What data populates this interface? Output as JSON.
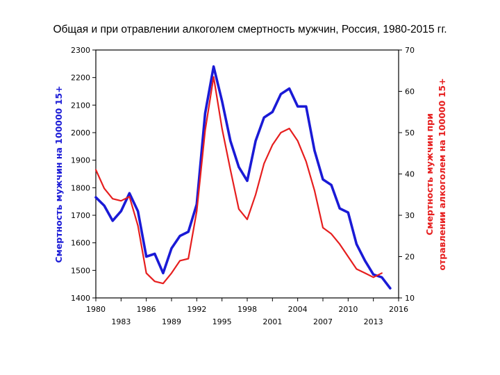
{
  "chart_data": {
    "type": "line",
    "title": "Общая и при отравлении алкоголем смертность мужчин, Россия, 1980-2015 гг.",
    "ylabel": "Смертность мужчин на 100000 15+",
    "y2label": [
      "Смертность мужчин при",
      "отравлении алкоголем на 100000 15+"
    ],
    "xlim": [
      1980,
      2016
    ],
    "ylim": [
      1400,
      2300
    ],
    "y2lim": [
      10,
      70
    ],
    "x_ticks": [
      {
        "value": 1980,
        "label": "1980"
      },
      {
        "value": 1983,
        "label": "1983"
      },
      {
        "value": 1986,
        "label": "1986"
      },
      {
        "value": 1989,
        "label": "1989"
      },
      {
        "value": 1992,
        "label": "1992"
      },
      {
        "value": 1995,
        "label": "1995"
      },
      {
        "value": 1998,
        "label": "1998"
      },
      {
        "value": 2001,
        "label": "2001"
      },
      {
        "value": 2004,
        "label": "2004"
      },
      {
        "value": 2007,
        "label": "2007"
      },
      {
        "value": 2010,
        "label": "2010"
      },
      {
        "value": 2013,
        "label": "2013"
      },
      {
        "value": 2016,
        "label": "2016"
      }
    ],
    "y_ticks": [
      "1400",
      "1500",
      "1600",
      "1700",
      "1800",
      "1900",
      "2000",
      "2100",
      "2200",
      "2300"
    ],
    "y2_ticks": [
      "10",
      "20",
      "30",
      "40",
      "50",
      "60",
      "70"
    ],
    "grid": false,
    "series": [
      {
        "axis": "left",
        "color": "#1a1ad6",
        "x": [
          1980,
          1981,
          1982,
          1983,
          1984,
          1985,
          1986,
          1987,
          1988,
          1989,
          1990,
          1991,
          1992,
          1993,
          1994,
          1995,
          1996,
          1997,
          1998,
          1999,
          2000,
          2001,
          2002,
          2003,
          2004,
          2005,
          2006,
          2007,
          2008,
          2009,
          2010,
          2011,
          2012,
          2013,
          2014,
          2015
        ],
        "values": [
          1765,
          1735,
          1680,
          1715,
          1780,
          1715,
          1550,
          1560,
          1490,
          1580,
          1625,
          1640,
          1740,
          2070,
          2240,
          2115,
          1970,
          1875,
          1825,
          1970,
          2055,
          2075,
          2140,
          2160,
          2095,
          2095,
          1935,
          1830,
          1810,
          1725,
          1710,
          1595,
          1535,
          1485,
          1475,
          1435
        ]
      },
      {
        "axis": "right",
        "color": "#e61e1e",
        "x": [
          1980,
          1981,
          1982,
          1983,
          1984,
          1985,
          1986,
          1987,
          1988,
          1989,
          1990,
          1991,
          1992,
          1993,
          1994,
          1995,
          1996,
          1997,
          1998,
          1999,
          2000,
          2001,
          2002,
          2003,
          2004,
          2005,
          2006,
          2007,
          2008,
          2009,
          2010,
          2011,
          2012,
          2013,
          2014
        ],
        "values": [
          41.0,
          36.5,
          34.0,
          33.5,
          34.5,
          27.5,
          16.0,
          14.0,
          13.5,
          16.0,
          19.0,
          19.5,
          31.0,
          50.5,
          63.5,
          51.0,
          41.0,
          31.5,
          29.0,
          35.0,
          42.5,
          47.0,
          50.0,
          51.0,
          48.0,
          43.0,
          36.0,
          27.0,
          25.5,
          23.0,
          20.0,
          17.0,
          16.0,
          15.0,
          16.0
        ]
      }
    ]
  }
}
